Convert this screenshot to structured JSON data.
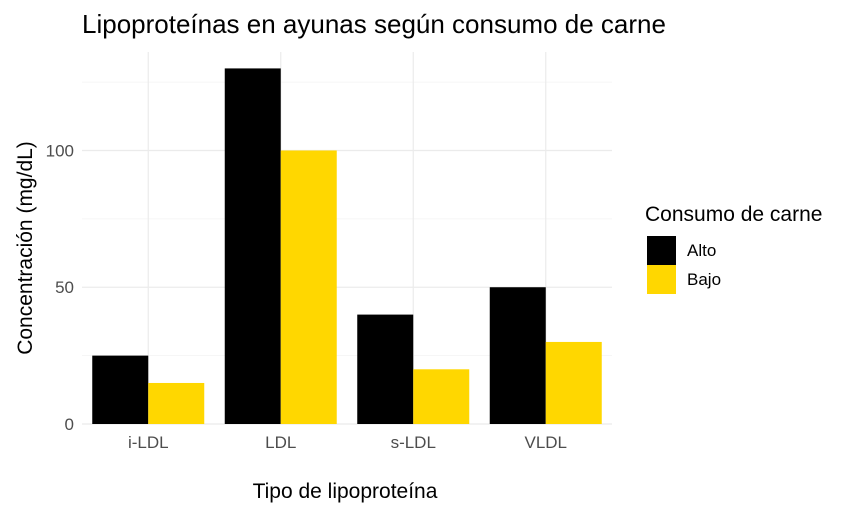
{
  "chart_data": {
    "type": "bar",
    "title": "Lipoproteínas en ayunas según consumo de carne",
    "xlabel": "Tipo de lipoproteína",
    "ylabel": "Concentración (mg/dL)",
    "categories": [
      "i-LDL",
      "LDL",
      "s-LDL",
      "VLDL"
    ],
    "series": [
      {
        "name": "Alto",
        "color": "#000000",
        "values": [
          25,
          130,
          40,
          50
        ]
      },
      {
        "name": "Bajo",
        "color": "#FFD700",
        "values": [
          15,
          100,
          20,
          30
        ]
      }
    ],
    "ylim": [
      0,
      136
    ],
    "yticks": [
      0,
      50,
      100
    ],
    "grid": true,
    "legend": {
      "title": "Consumo de carne",
      "position": "right"
    }
  }
}
